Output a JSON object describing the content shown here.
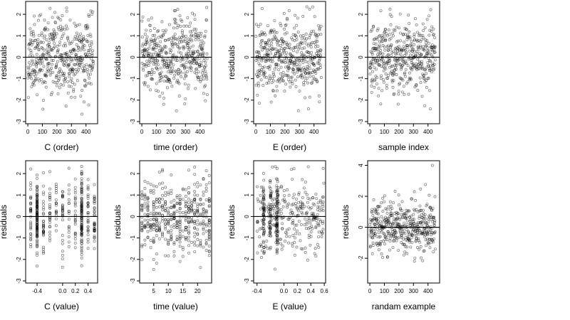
{
  "figure": {
    "chart_data": [
      {
        "type": "scatter",
        "xlabel": "C (order)",
        "ylabel": "residuals",
        "x_kind": "index",
        "xticks": [
          0,
          100,
          200,
          300,
          400
        ],
        "xtick_labels": [
          "0",
          "100",
          "200",
          "300",
          "400"
        ],
        "xlim": [
          -15,
          480
        ],
        "yticks": [
          -3,
          -2,
          -1,
          0,
          1,
          2
        ],
        "ytick_labels": [
          "-3",
          "-2",
          "-1",
          "0",
          "1",
          "2"
        ],
        "ylim": [
          -3.1,
          2.6
        ],
        "reference_line": 0,
        "n_points": 450,
        "seed": 11
      },
      {
        "type": "scatter",
        "xlabel": "time (order)",
        "ylabel": "residuals",
        "x_kind": "index",
        "xticks": [
          0,
          100,
          200,
          300,
          400
        ],
        "xtick_labels": [
          "0",
          "100",
          "200",
          "300",
          "400"
        ],
        "xlim": [
          -15,
          480
        ],
        "yticks": [
          -3,
          -2,
          -1,
          0,
          1,
          2
        ],
        "ytick_labels": [
          "-3",
          "-2",
          "-1",
          "0",
          "1",
          "2"
        ],
        "ylim": [
          -3.1,
          2.6
        ],
        "reference_line": 0,
        "n_points": 450,
        "seed": 23
      },
      {
        "type": "scatter",
        "xlabel": "E (order)",
        "ylabel": "residuals",
        "x_kind": "index",
        "xticks": [
          0,
          100,
          200,
          300,
          400
        ],
        "xtick_labels": [
          "0",
          "100",
          "200",
          "300",
          "400"
        ],
        "xlim": [
          -15,
          480
        ],
        "yticks": [
          -3,
          -2,
          -1,
          0,
          1,
          2
        ],
        "ytick_labels": [
          "-3",
          "-2",
          "-1",
          "0",
          "1",
          "2"
        ],
        "ylim": [
          -3.1,
          2.6
        ],
        "reference_line": 0,
        "n_points": 450,
        "seed": 37
      },
      {
        "type": "scatter",
        "xlabel": "sample index",
        "ylabel": "residuals",
        "x_kind": "index",
        "xticks": [
          0,
          100,
          200,
          300,
          400
        ],
        "xtick_labels": [
          "0",
          "100",
          "200",
          "300",
          "400"
        ],
        "xlim": [
          -15,
          480
        ],
        "yticks": [
          -3,
          -2,
          -1,
          0,
          1,
          2
        ],
        "ytick_labels": [
          "-3",
          "-2",
          "-1",
          "0",
          "1",
          "2"
        ],
        "ylim": [
          -3.1,
          2.6
        ],
        "reference_line": 0,
        "n_points": 450,
        "seed": 41
      },
      {
        "type": "scatter",
        "xlabel": "C (value)",
        "ylabel": "residuals",
        "x_kind": "discrete",
        "x_levels": [
          -0.5,
          -0.4,
          -0.3,
          -0.2,
          -0.1,
          0.0,
          0.1,
          0.2,
          0.3,
          0.4,
          0.5
        ],
        "xticks": [
          -0.4,
          0.0,
          0.2,
          0.4
        ],
        "xtick_labels": [
          "-0.4",
          "0.0",
          "0.2",
          "0.4"
        ],
        "xlim": [
          -0.58,
          0.55
        ],
        "yticks": [
          -3,
          -2,
          -1,
          0,
          1,
          2
        ],
        "ytick_labels": [
          "-3",
          "-2",
          "-1",
          "0",
          "1",
          "2"
        ],
        "ylim": [
          -3.1,
          2.6
        ],
        "reference_line": 0,
        "n_points": 450,
        "seed": 53
      },
      {
        "type": "scatter",
        "xlabel": "time (value)",
        "ylabel": "residuals",
        "x_kind": "integer",
        "x_range": [
          1,
          24
        ],
        "xticks": [
          5,
          10,
          15,
          20
        ],
        "xtick_labels": [
          "5",
          "10",
          "15",
          "20"
        ],
        "xlim": [
          0.2,
          24.8
        ],
        "yticks": [
          -3,
          -2,
          -1,
          0,
          1,
          2
        ],
        "ytick_labels": [
          "-3",
          "-2",
          "-1",
          "0",
          "1",
          "2"
        ],
        "ylim": [
          -3.1,
          2.6
        ],
        "reference_line": 0,
        "n_points": 450,
        "seed": 67
      },
      {
        "type": "scatter",
        "xlabel": "E (value)",
        "ylabel": "residuals",
        "x_kind": "clustered",
        "x_range": [
          -0.4,
          0.6
        ],
        "x_clusters": [
          -0.3,
          -0.2,
          -0.1
        ],
        "xticks": [
          -0.4,
          0.0,
          0.2,
          0.4,
          0.6
        ],
        "xtick_labels": [
          "-0.4",
          "0.0",
          "0.2",
          "0.4",
          "0.6"
        ],
        "xlim": [
          -0.45,
          0.62
        ],
        "yticks": [
          -3,
          -2,
          -1,
          0,
          1,
          2
        ],
        "ytick_labels": [
          "-3",
          "-2",
          "-1",
          "0",
          "1",
          "2"
        ],
        "ylim": [
          -3.1,
          2.6
        ],
        "reference_line": 0,
        "n_points": 450,
        "seed": 79
      },
      {
        "type": "scatter",
        "xlabel": "randam example",
        "ylabel": "residuals",
        "x_kind": "index",
        "xticks": [
          0,
          100,
          200,
          300,
          400
        ],
        "xtick_labels": [
          "0",
          "100",
          "200",
          "300",
          "400"
        ],
        "xlim": [
          -15,
          480
        ],
        "yticks": [
          -2,
          0,
          2,
          4
        ],
        "ytick_labels": [
          "-2",
          "0",
          "2",
          "4"
        ],
        "ylim": [
          -3.6,
          4.3
        ],
        "reference_line": 0,
        "n_points": 450,
        "seed": 97,
        "outlier_max": 4.0
      }
    ]
  }
}
